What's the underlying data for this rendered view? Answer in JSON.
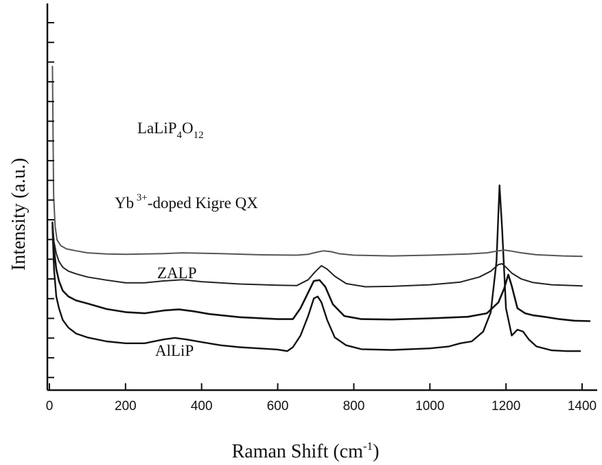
{
  "chart_data": {
    "type": "line",
    "title": "",
    "xlabel": "Raman Shift",
    "xlabel_unit": "(cm",
    "xlabel_sup": "-1",
    "xlabel_close": ")",
    "ylabel": "Intensity (a.u.)",
    "xlim": [
      0,
      1400
    ],
    "xticks": [
      0,
      200,
      400,
      600,
      800,
      1000,
      1200,
      1400
    ],
    "y_tick_labels": false,
    "grid": false,
    "legend": "none",
    "series": [
      {
        "name": "LaLiP4O12",
        "label_parts": [
          {
            "text": "LaLiP",
            "shift": "none"
          },
          {
            "text": "4",
            "shift": "sub"
          },
          {
            "text": "O",
            "shift": "none"
          },
          {
            "text": "12",
            "shift": "sub"
          }
        ],
        "color": "#111111",
        "points": [
          [
            8,
            58
          ],
          [
            12,
            69
          ],
          [
            18,
            76
          ],
          [
            25,
            79
          ],
          [
            35,
            82
          ],
          [
            50,
            84
          ],
          [
            70,
            85.5
          ],
          [
            100,
            86.5
          ],
          [
            150,
            87.5
          ],
          [
            200,
            88
          ],
          [
            250,
            88
          ],
          [
            300,
            87
          ],
          [
            330,
            86.6
          ],
          [
            360,
            87
          ],
          [
            400,
            87.7
          ],
          [
            450,
            88.5
          ],
          [
            500,
            89
          ],
          [
            550,
            89.3
          ],
          [
            600,
            89.6
          ],
          [
            625,
            90
          ],
          [
            640,
            89
          ],
          [
            660,
            86
          ],
          [
            680,
            81
          ],
          [
            695,
            76.5
          ],
          [
            705,
            76
          ],
          [
            715,
            77.5
          ],
          [
            730,
            82
          ],
          [
            750,
            86.5
          ],
          [
            780,
            88.5
          ],
          [
            820,
            89.5
          ],
          [
            900,
            89.7
          ],
          [
            1000,
            89.3
          ],
          [
            1050,
            88.8
          ],
          [
            1080,
            88
          ],
          [
            1110,
            87.5
          ],
          [
            1140,
            85
          ],
          [
            1160,
            80
          ],
          [
            1175,
            67
          ],
          [
            1183,
            47.5
          ],
          [
            1190,
            59
          ],
          [
            1200,
            79
          ],
          [
            1215,
            86
          ],
          [
            1230,
            84.5
          ],
          [
            1245,
            85
          ],
          [
            1260,
            87
          ],
          [
            1280,
            88.8
          ],
          [
            1320,
            89.8
          ],
          [
            1360,
            90
          ],
          [
            1395,
            90
          ]
        ]
      },
      {
        "name": "Yb3+-doped Kigre QX",
        "label_parts": [
          {
            "text": "Yb",
            "shift": "none"
          },
          {
            "text": " 3+",
            "shift": "super"
          },
          {
            "text": "-doped Kigre QX",
            "shift": "none"
          }
        ],
        "color": "#111111",
        "points": [
          [
            8,
            57
          ],
          [
            12,
            64
          ],
          [
            18,
            69
          ],
          [
            25,
            72
          ],
          [
            35,
            74.5
          ],
          [
            50,
            76
          ],
          [
            70,
            77
          ],
          [
            100,
            77.8
          ],
          [
            150,
            79.2
          ],
          [
            200,
            80
          ],
          [
            250,
            80.3
          ],
          [
            300,
            79.6
          ],
          [
            340,
            79.3
          ],
          [
            380,
            79.8
          ],
          [
            420,
            80.5
          ],
          [
            500,
            81.3
          ],
          [
            600,
            81.8
          ],
          [
            640,
            81.8
          ],
          [
            660,
            79
          ],
          [
            680,
            75
          ],
          [
            695,
            72
          ],
          [
            710,
            71.8
          ],
          [
            725,
            73.5
          ],
          [
            745,
            78
          ],
          [
            775,
            81
          ],
          [
            820,
            81.8
          ],
          [
            900,
            81.9
          ],
          [
            1000,
            81.6
          ],
          [
            1100,
            81.2
          ],
          [
            1150,
            80.3
          ],
          [
            1180,
            77.5
          ],
          [
            1195,
            74
          ],
          [
            1206,
            70.4
          ],
          [
            1215,
            73.3
          ],
          [
            1230,
            79
          ],
          [
            1250,
            80.3
          ],
          [
            1270,
            80.8
          ],
          [
            1300,
            81.2
          ],
          [
            1340,
            81.8
          ],
          [
            1380,
            82.2
          ],
          [
            1420,
            82.3
          ]
        ]
      },
      {
        "name": "ZALP",
        "label_parts": [
          {
            "text": "ZALP",
            "shift": "none"
          }
        ],
        "color": "#222222",
        "points": [
          [
            8,
            57
          ],
          [
            12,
            62
          ],
          [
            18,
            65
          ],
          [
            25,
            67
          ],
          [
            35,
            68.5
          ],
          [
            50,
            69.5
          ],
          [
            70,
            70.2
          ],
          [
            100,
            71
          ],
          [
            150,
            71.8
          ],
          [
            200,
            72.5
          ],
          [
            250,
            72.5
          ],
          [
            300,
            72
          ],
          [
            350,
            71.7
          ],
          [
            400,
            72.2
          ],
          [
            500,
            72.8
          ],
          [
            600,
            73.1
          ],
          [
            650,
            73.2
          ],
          [
            680,
            71.7
          ],
          [
            700,
            69.5
          ],
          [
            715,
            68.1
          ],
          [
            730,
            69
          ],
          [
            750,
            70.8
          ],
          [
            780,
            72.7
          ],
          [
            830,
            73.5
          ],
          [
            900,
            73.4
          ],
          [
            1000,
            73
          ],
          [
            1080,
            72.3
          ],
          [
            1130,
            71
          ],
          [
            1160,
            69.5
          ],
          [
            1180,
            67.8
          ],
          [
            1190,
            67.6
          ],
          [
            1200,
            68.5
          ],
          [
            1215,
            70
          ],
          [
            1240,
            71.5
          ],
          [
            1270,
            72.4
          ],
          [
            1320,
            73
          ],
          [
            1400,
            73.3
          ]
        ]
      },
      {
        "name": "AlLiP",
        "label_parts": [
          {
            "text": "AlLiP",
            "shift": "none"
          }
        ],
        "color": "#555555",
        "points": [
          [
            8,
            17
          ],
          [
            11,
            50
          ],
          [
            15,
            58
          ],
          [
            20,
            61.5
          ],
          [
            30,
            63
          ],
          [
            45,
            63.8
          ],
          [
            70,
            64.3
          ],
          [
            100,
            64.8
          ],
          [
            150,
            65.1
          ],
          [
            200,
            65.2
          ],
          [
            300,
            65
          ],
          [
            350,
            64.8
          ],
          [
            450,
            65
          ],
          [
            550,
            65.3
          ],
          [
            650,
            65.4
          ],
          [
            680,
            65.2
          ],
          [
            700,
            64.7
          ],
          [
            720,
            64.3
          ],
          [
            740,
            64.5
          ],
          [
            760,
            65
          ],
          [
            800,
            65.4
          ],
          [
            900,
            65.6
          ],
          [
            1000,
            65.4
          ],
          [
            1100,
            65.1
          ],
          [
            1150,
            64.8
          ],
          [
            1180,
            64.3
          ],
          [
            1195,
            64.1
          ],
          [
            1210,
            64.3
          ],
          [
            1240,
            64.8
          ],
          [
            1280,
            65.3
          ],
          [
            1350,
            65.6
          ],
          [
            1400,
            65.7
          ]
        ]
      }
    ]
  }
}
